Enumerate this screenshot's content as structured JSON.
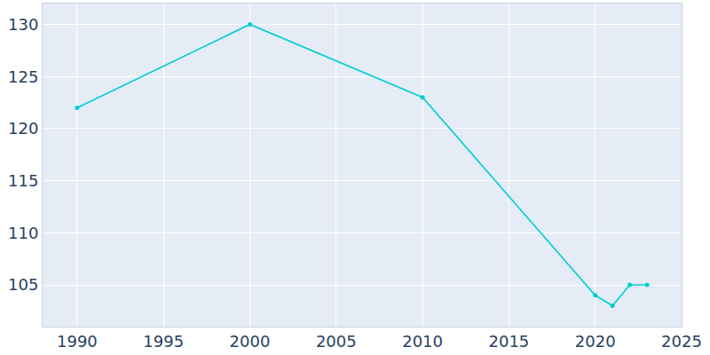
{
  "chart_data": {
    "type": "line",
    "x": [
      1990,
      2000,
      2010,
      2020,
      2021,
      2022,
      2023
    ],
    "values": [
      122,
      130,
      123,
      104,
      103,
      105,
      105
    ],
    "color": "#00ced1",
    "marker": "circle",
    "xlim": [
      1988,
      2025
    ],
    "xticks": [
      1990,
      1995,
      2000,
      2005,
      2010,
      2015,
      2020,
      2025
    ],
    "ylim": [
      101,
      132
    ],
    "yticks": [
      105,
      110,
      115,
      120,
      125,
      130
    ],
    "grid": true
  }
}
